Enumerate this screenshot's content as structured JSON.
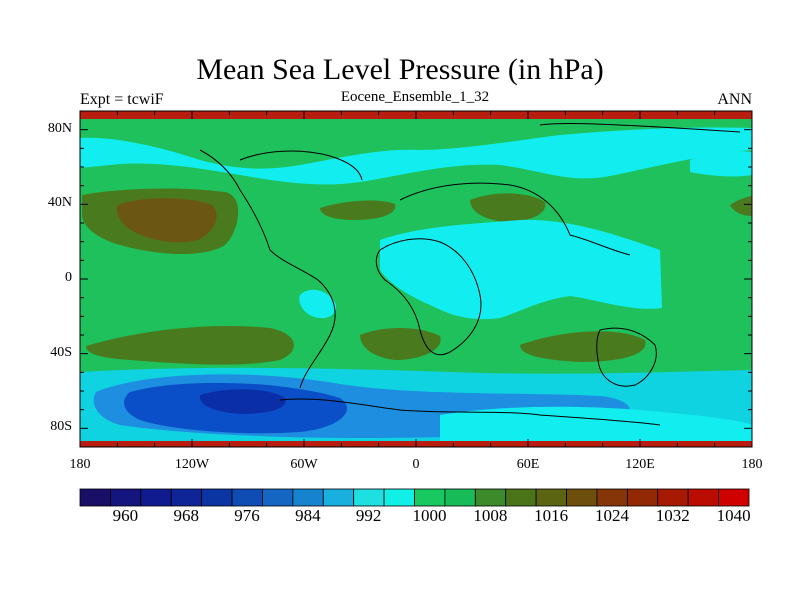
{
  "title": "Mean Sea Level Pressure (in hPa)",
  "left_label": "Expt = tcwiF",
  "center_label": "Eocene_Ensemble_1_32",
  "right_label": "ANN",
  "lat_ticks": [
    "80N",
    "40N",
    "0",
    "40S",
    "80S"
  ],
  "lon_ticks": [
    "180",
    "120W",
    "60W",
    "0",
    "60E",
    "120E",
    "180"
  ],
  "colorbar": {
    "labels": [
      "960",
      "968",
      "976",
      "984",
      "992",
      "1000",
      "1008",
      "1016",
      "1024",
      "1032",
      "1040"
    ],
    "colors": [
      "#1a0f66",
      "#14157f",
      "#0f1b8f",
      "#0d2596",
      "#0a35a3",
      "#0f4db5",
      "#1466c2",
      "#1683cf",
      "#19b0df",
      "#1fe0e0",
      "#10f0e6",
      "#18c860",
      "#17bb58",
      "#3d8a2a",
      "#4a7417",
      "#5b6411",
      "#6e4e0c",
      "#853508",
      "#932804",
      "#a61a03",
      "#bb0c02",
      "#d10000"
    ]
  },
  "map_colors": {
    "ocean_green": "#1fc15c",
    "high_olive": "#4a7a1e",
    "high_brown": "#6b5713",
    "low_cyan": "#12eef0",
    "low_aqua": "#0fd3e0",
    "low_blue": "#1e8fe0",
    "deep_blue": "#0b4fc8",
    "polar_red": "#b71e0f"
  }
}
